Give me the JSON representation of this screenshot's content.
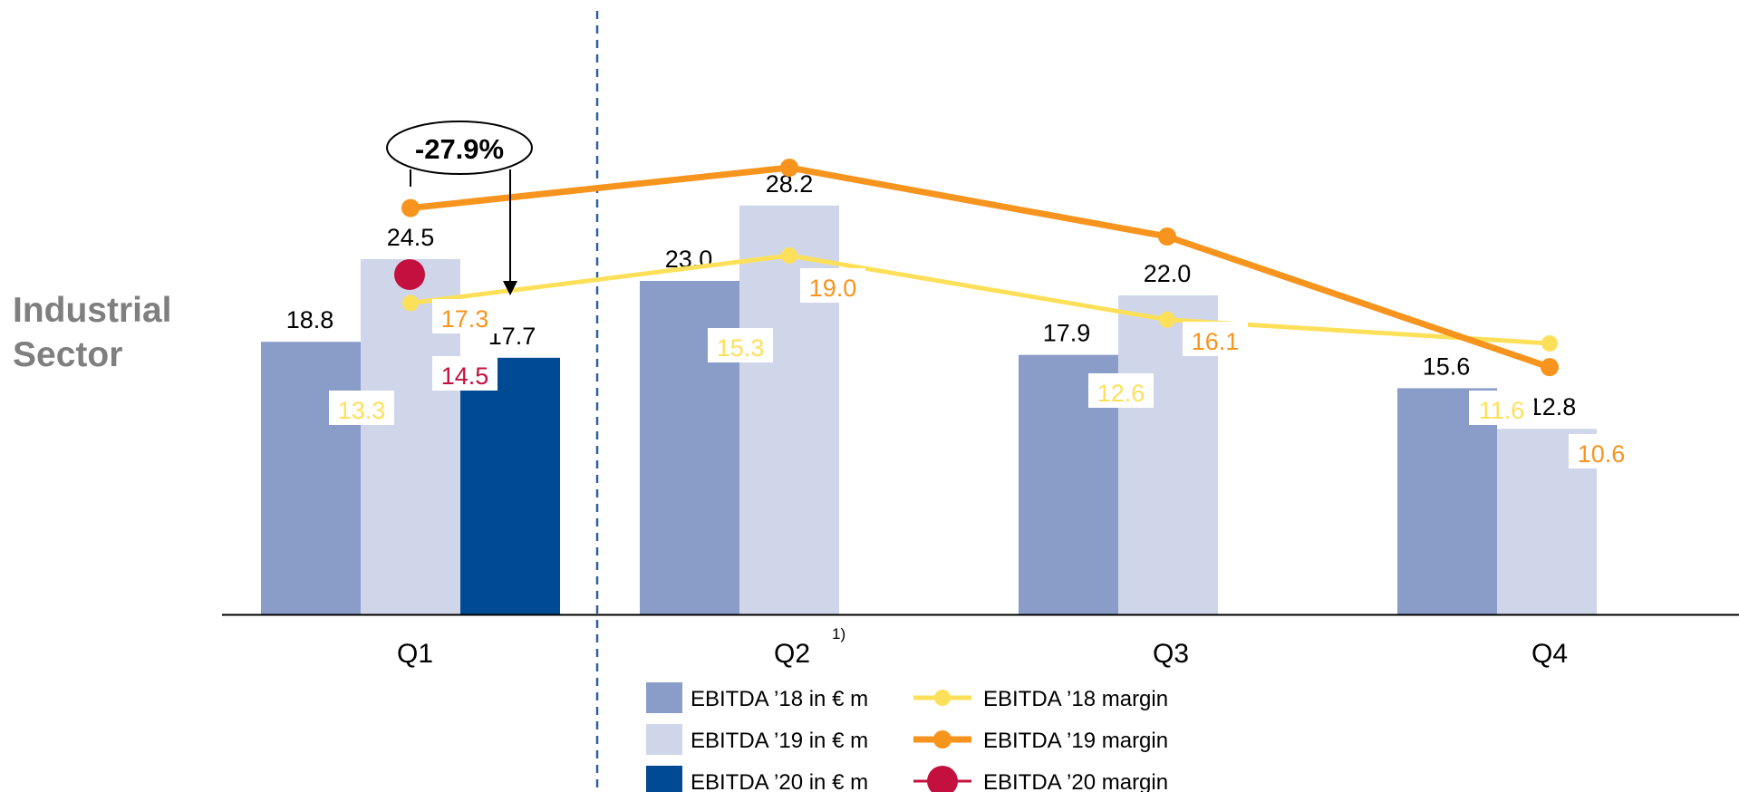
{
  "sector_title": [
    "Industrial",
    "Sector"
  ],
  "colors": {
    "bar18": "#8a9dc9",
    "bar19": "#d0d6e9",
    "bar20": "#004a93",
    "line18": "#fde05a",
    "line19": "#f7941d",
    "dot20": "#c4103f",
    "divider": "#2e5f9e",
    "axis": "#000000"
  },
  "chart_data": {
    "type": "bar",
    "categories": [
      "Q1",
      "Q2",
      "Q3",
      "Q4"
    ],
    "category_footnotes": [
      "",
      "1)",
      "",
      ""
    ],
    "series": [
      {
        "name": "EBITDA ’18 in € m",
        "kind": "bar",
        "values": [
          18.8,
          23.0,
          17.9,
          15.6
        ]
      },
      {
        "name": "EBITDA ’19 in € m",
        "kind": "bar",
        "values": [
          24.5,
          28.2,
          22.0,
          12.8
        ]
      },
      {
        "name": "EBITDA ’20 in € m",
        "kind": "bar",
        "values": [
          17.7,
          null,
          null,
          null
        ]
      },
      {
        "name": "EBITDA ’18 margin",
        "kind": "line",
        "values": [
          13.3,
          15.3,
          12.6,
          11.6
        ]
      },
      {
        "name": "EBITDA ’19 margin",
        "kind": "line",
        "values": [
          17.3,
          19.0,
          16.1,
          10.6
        ]
      },
      {
        "name": "EBITDA ’20 margin",
        "kind": "point",
        "values": [
          14.5,
          null,
          null,
          null
        ]
      }
    ],
    "annotation": {
      "text": "-27.9%",
      "from_category": "Q1",
      "from_series": "EBITDA ’19 in € m",
      "to_series": "EBITDA ’20 in € m"
    },
    "legend_position": "bottom",
    "grid": false
  }
}
